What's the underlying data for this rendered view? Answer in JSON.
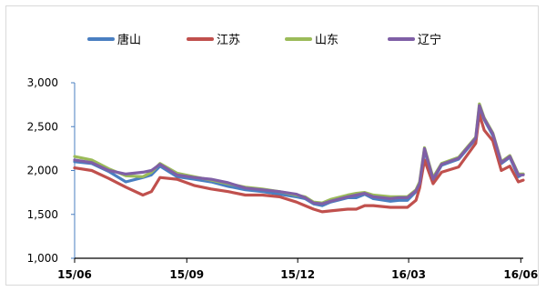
{
  "chart_data": {
    "type": "line",
    "title": "",
    "xlabel": "",
    "ylabel": "",
    "ylim": [
      1000,
      3000
    ],
    "y_ticks": [
      "1,000",
      "1,500",
      "2,000",
      "2,500",
      "3,000"
    ],
    "y_tick_values": [
      1000,
      1500,
      2000,
      2500,
      3000
    ],
    "x_tick_labels": [
      "15/06",
      "15/09",
      "15/12",
      "16/03",
      "16/06"
    ],
    "x_tick_dates": [
      "2015-06-01",
      "2015-09-01",
      "2015-12-01",
      "2016-03-01",
      "2016-06-01"
    ],
    "x_range": [
      "2015-06-01",
      "2016-06-03"
    ],
    "grid": false,
    "legend_position": "top",
    "x": [
      "2015-06-01",
      "2015-06-15",
      "2015-06-29",
      "2015-07-13",
      "2015-07-27",
      "2015-08-03",
      "2015-08-10",
      "2015-08-24",
      "2015-09-07",
      "2015-09-21",
      "2015-10-05",
      "2015-10-19",
      "2015-11-02",
      "2015-11-16",
      "2015-11-30",
      "2015-12-07",
      "2015-12-14",
      "2015-12-21",
      "2015-12-28",
      "2016-01-11",
      "2016-01-18",
      "2016-01-25",
      "2016-02-01",
      "2016-02-15",
      "2016-02-22",
      "2016-02-29",
      "2016-03-07",
      "2016-03-10",
      "2016-03-14",
      "2016-03-21",
      "2016-03-28",
      "2016-04-11",
      "2016-04-25",
      "2016-04-28",
      "2016-05-02",
      "2016-05-09",
      "2016-05-16",
      "2016-05-23",
      "2016-05-30",
      "2016-06-03"
    ],
    "series": [
      {
        "name": "唐山",
        "color": "#4a7fc1",
        "values": [
          2100,
          2080,
          1990,
          1870,
          1920,
          1950,
          2050,
          1930,
          1900,
          1870,
          1820,
          1780,
          1760,
          1730,
          1700,
          1680,
          1620,
          1600,
          1640,
          1690,
          1690,
          1730,
          1680,
          1650,
          1660,
          1660,
          1760,
          1840,
          2230,
          1890,
          2060,
          2130,
          2360,
          2720,
          2580,
          2400,
          2080,
          2150,
          1930,
          1960
        ]
      },
      {
        "name": "江苏",
        "color": "#c0504d",
        "values": [
          2030,
          2000,
          1910,
          1810,
          1720,
          1760,
          1920,
          1900,
          1830,
          1790,
          1760,
          1720,
          1720,
          1700,
          1640,
          1600,
          1560,
          1530,
          1540,
          1560,
          1560,
          1600,
          1600,
          1580,
          1580,
          1580,
          1660,
          1800,
          2120,
          1850,
          1980,
          2040,
          2310,
          2640,
          2460,
          2340,
          2000,
          2050,
          1870,
          1890
        ]
      },
      {
        "name": "山东",
        "color": "#9bbb59",
        "values": [
          2160,
          2120,
          2020,
          1940,
          1930,
          1980,
          2080,
          1970,
          1930,
          1890,
          1850,
          1810,
          1790,
          1760,
          1720,
          1700,
          1640,
          1630,
          1670,
          1720,
          1740,
          1750,
          1720,
          1700,
          1700,
          1700,
          1780,
          1870,
          2260,
          1920,
          2080,
          2150,
          2380,
          2760,
          2600,
          2430,
          2100,
          2170,
          1960,
          1960
        ]
      },
      {
        "name": "辽宁",
        "color": "#7f5fa6",
        "values": [
          2120,
          2090,
          2000,
          1960,
          1980,
          2000,
          2070,
          1950,
          1920,
          1900,
          1860,
          1800,
          1780,
          1760,
          1730,
          1690,
          1630,
          1620,
          1650,
          1700,
          1720,
          1740,
          1700,
          1680,
          1690,
          1690,
          1770,
          1850,
          2250,
          1900,
          2070,
          2140,
          2370,
          2740,
          2590,
          2420,
          2090,
          2160,
          1950,
          1950
        ]
      }
    ]
  }
}
